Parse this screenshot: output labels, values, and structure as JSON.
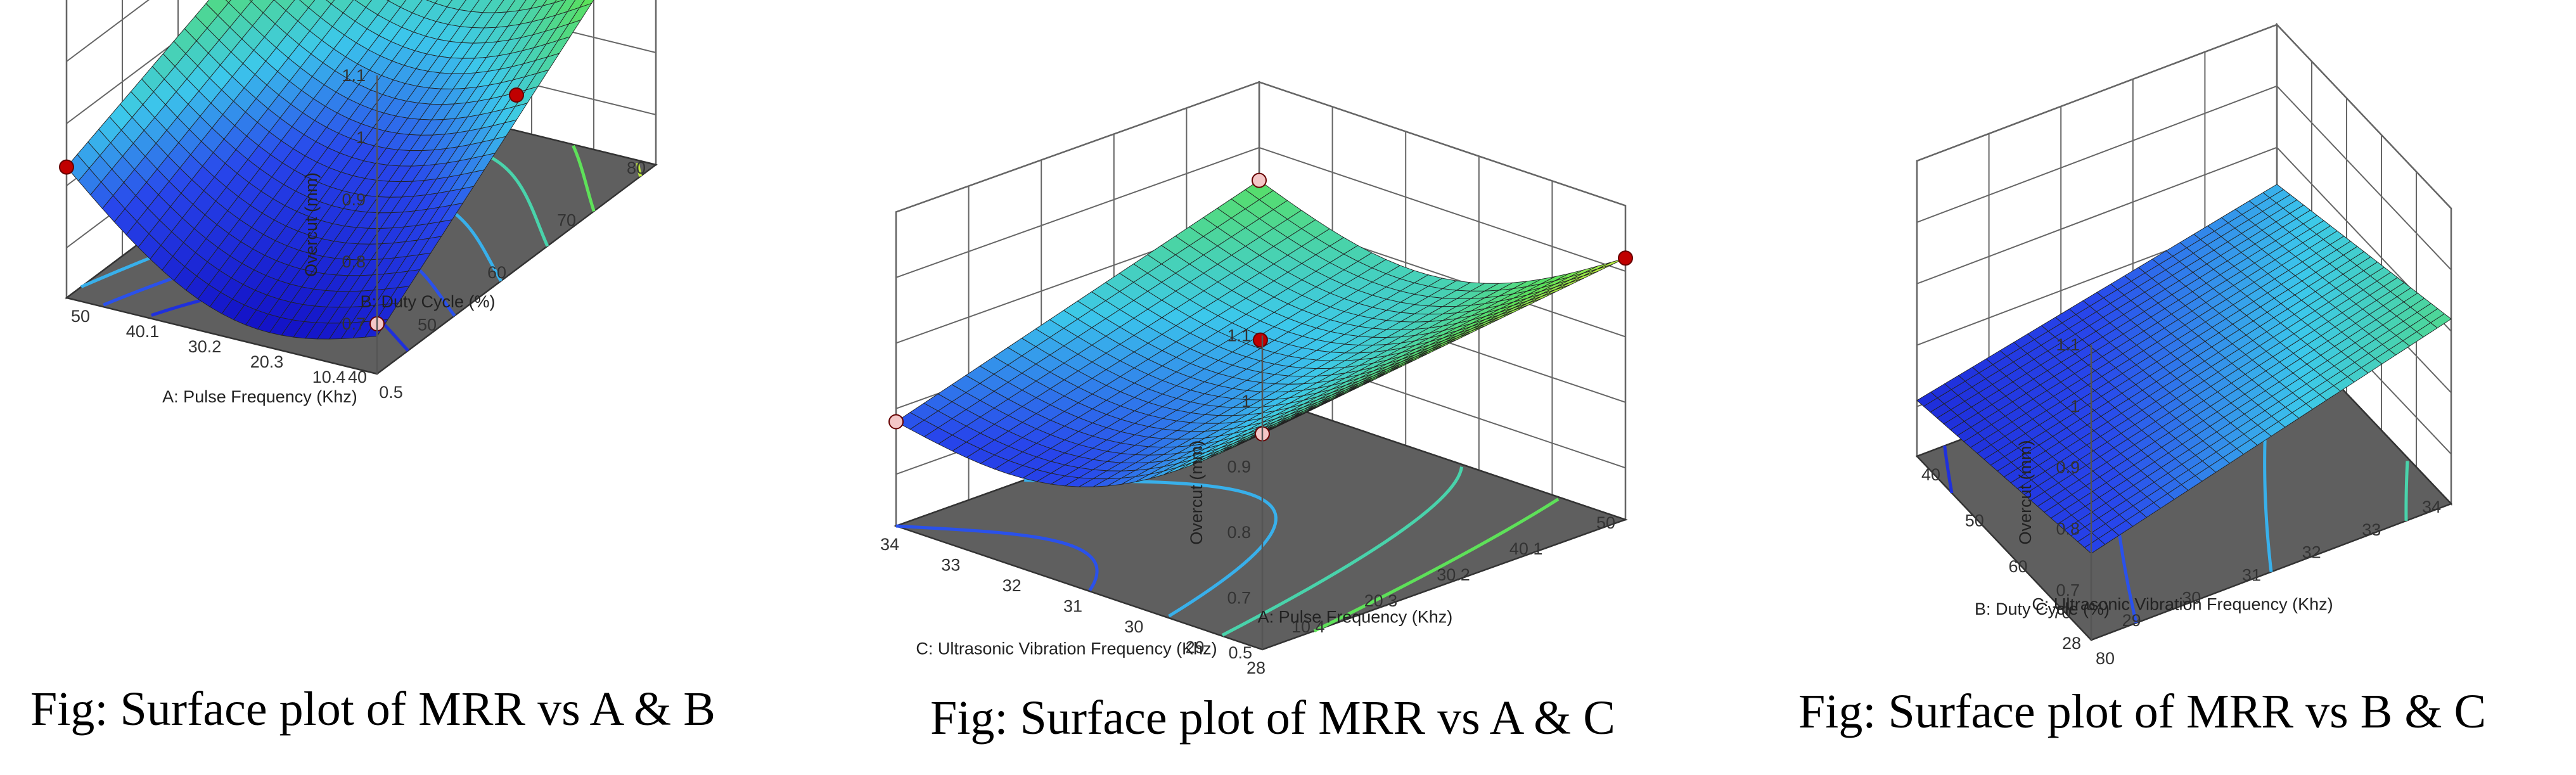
{
  "figure": {
    "captions": [
      "Fig: Surface plot of MRR vs A & B",
      "Fig: Surface plot of MRR vs A & C",
      "Fig: Surface plot of MRR vs B & C"
    ]
  },
  "chart_data": [
    {
      "type": "surface3d",
      "title": "",
      "zlabel": "Overcut (mm)",
      "zticks": [
        "1.1",
        "1",
        "0.9",
        "0.8",
        "0.7"
      ],
      "zlim": [
        0.65,
        1.1
      ],
      "axis_a": {
        "label": "A: Pulse Frequency (Khz)",
        "ticks": [
          "0.5",
          "10.4",
          "20.3",
          "30.2",
          "40.1",
          "50"
        ],
        "range": [
          0.5,
          50
        ]
      },
      "axis_b": {
        "label": "B: Duty Cycle (%)",
        "ticks": [
          "40",
          "50",
          "60",
          "70",
          "80"
        ],
        "range": [
          40,
          80
        ]
      },
      "corner_values": {
        "low_low": 0.68,
        "high_low": 0.83,
        "low_high": 1.04,
        "high_high": 1.02
      },
      "design_points": [
        {
          "a": 0.5,
          "b": 80,
          "overcut": 1.04,
          "side": "above"
        },
        {
          "a": 50,
          "b": 80,
          "overcut": 1.02,
          "side": "above"
        },
        {
          "a": 0.5,
          "b": 60,
          "overcut": 0.9,
          "side": "above"
        },
        {
          "a": 50,
          "b": 40,
          "overcut": 0.83,
          "side": "above"
        },
        {
          "a": 0.5,
          "b": 40,
          "overcut": 0.7,
          "side": "below"
        }
      ],
      "colormap": "blue-cyan-green-yellow",
      "contours_on_floor": true
    },
    {
      "type": "surface3d",
      "title": "",
      "zlabel": "Overcut (mm)",
      "zticks": [
        "1.1",
        "1",
        "0.9",
        "0.8",
        "0.7"
      ],
      "zlim": [
        0.65,
        1.1
      ],
      "axis_a": {
        "label": "C: Ultrasonic Vibration Frequency (Khz)",
        "ticks": [
          "28",
          "29",
          "30",
          "31",
          "32",
          "33",
          "34"
        ],
        "range": [
          28,
          34
        ]
      },
      "axis_b": {
        "label": "A: Pulse Frequency (Khz)",
        "ticks": [
          "0.5",
          "10.4",
          "20.3",
          "30.2",
          "40.1",
          "50"
        ],
        "range": [
          0.5,
          50
        ]
      },
      "corner_values": {
        "low_low": 0.95,
        "high_low": 0.78,
        "low_high": 1.02,
        "high_high": 0.95
      },
      "design_points": [
        {
          "a": 28,
          "b": 50,
          "overcut": 1.02,
          "side": "above"
        },
        {
          "a": 28,
          "b": 0.5,
          "overcut": 0.95,
          "side": "below"
        },
        {
          "a": 31,
          "b": 25.2,
          "overcut": 0.9,
          "side": "above"
        },
        {
          "a": 34,
          "b": 50,
          "overcut": 0.95,
          "side": "below"
        },
        {
          "a": 34,
          "b": 0.5,
          "overcut": 0.78,
          "side": "below"
        }
      ],
      "colormap": "blue-cyan-green-yellow",
      "contours_on_floor": true
    },
    {
      "type": "surface3d",
      "title": "",
      "zlabel": "Overcut (mm)",
      "zticks": [
        "1.1",
        "1",
        "0.9",
        "0.8",
        "0.7"
      ],
      "zlim": [
        0.65,
        1.1
      ],
      "axis_a": {
        "label": "B: Duty Cycle (%)",
        "ticks": [
          "80",
          "70",
          "60",
          "50",
          "40"
        ],
        "range": [
          80,
          40
        ]
      },
      "axis_b": {
        "label": "C: Ultrasonic Vibration Frequency (Khz)",
        "ticks": [
          "28",
          "29",
          "30",
          "31",
          "32",
          "33",
          "34"
        ],
        "range": [
          28,
          34
        ]
      },
      "corner_values": {
        "low_low": 0.76,
        "high_low": 0.71,
        "low_high": 0.92,
        "high_high": 0.84
      },
      "design_points": [],
      "colormap": "blue-cyan-green-yellow",
      "contours_on_floor": true
    }
  ]
}
